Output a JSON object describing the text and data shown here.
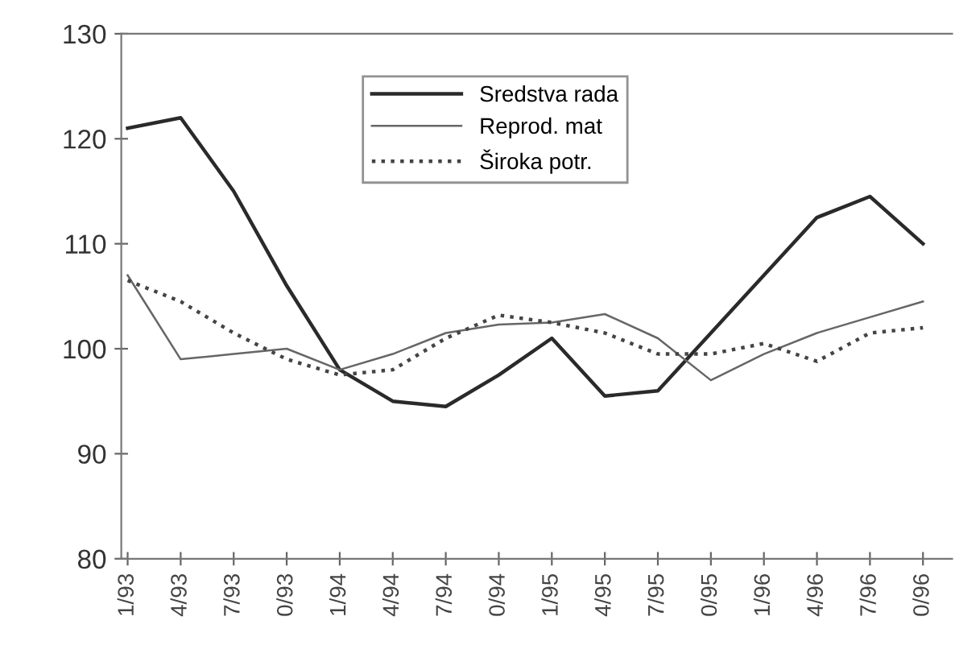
{
  "chart_data": {
    "type": "line",
    "categories": [
      "1/93",
      "4/93",
      "7/93",
      "0/93",
      "1/94",
      "4/94",
      "7/94",
      "0/94",
      "1/95",
      "4/95",
      "7/95",
      "0/95",
      "1/96",
      "4/96",
      "7/96",
      "0/96"
    ],
    "series": [
      {
        "name": "Sredstva rada",
        "color": "#2a2a2a",
        "line_style": "solid",
        "values": [
          121,
          122,
          115,
          106,
          98,
          95,
          94.5,
          97.5,
          101,
          95.5,
          96,
          101.5,
          107,
          112.5,
          114.5,
          110
        ]
      },
      {
        "name": "Reprod. mat",
        "color": "#666666",
        "line_style": "solid",
        "values": [
          107,
          99,
          99.5,
          100,
          98,
          99.5,
          101.5,
          102.3,
          102.5,
          103.3,
          101,
          97,
          99.5,
          101.5,
          103,
          104.5
        ]
      },
      {
        "name": "Široka potr.",
        "color": "#444444",
        "line_style": "dotted",
        "values": [
          106.5,
          104.5,
          101.5,
          99,
          97.5,
          98,
          101,
          103.2,
          102.5,
          101.5,
          99.5,
          99.5,
          100.5,
          98.8,
          101.5,
          102
        ]
      }
    ],
    "ylim": [
      80,
      130
    ],
    "yticks": [
      80,
      90,
      100,
      110,
      120,
      130
    ],
    "grid": false,
    "legend": "top",
    "marker": "none"
  }
}
